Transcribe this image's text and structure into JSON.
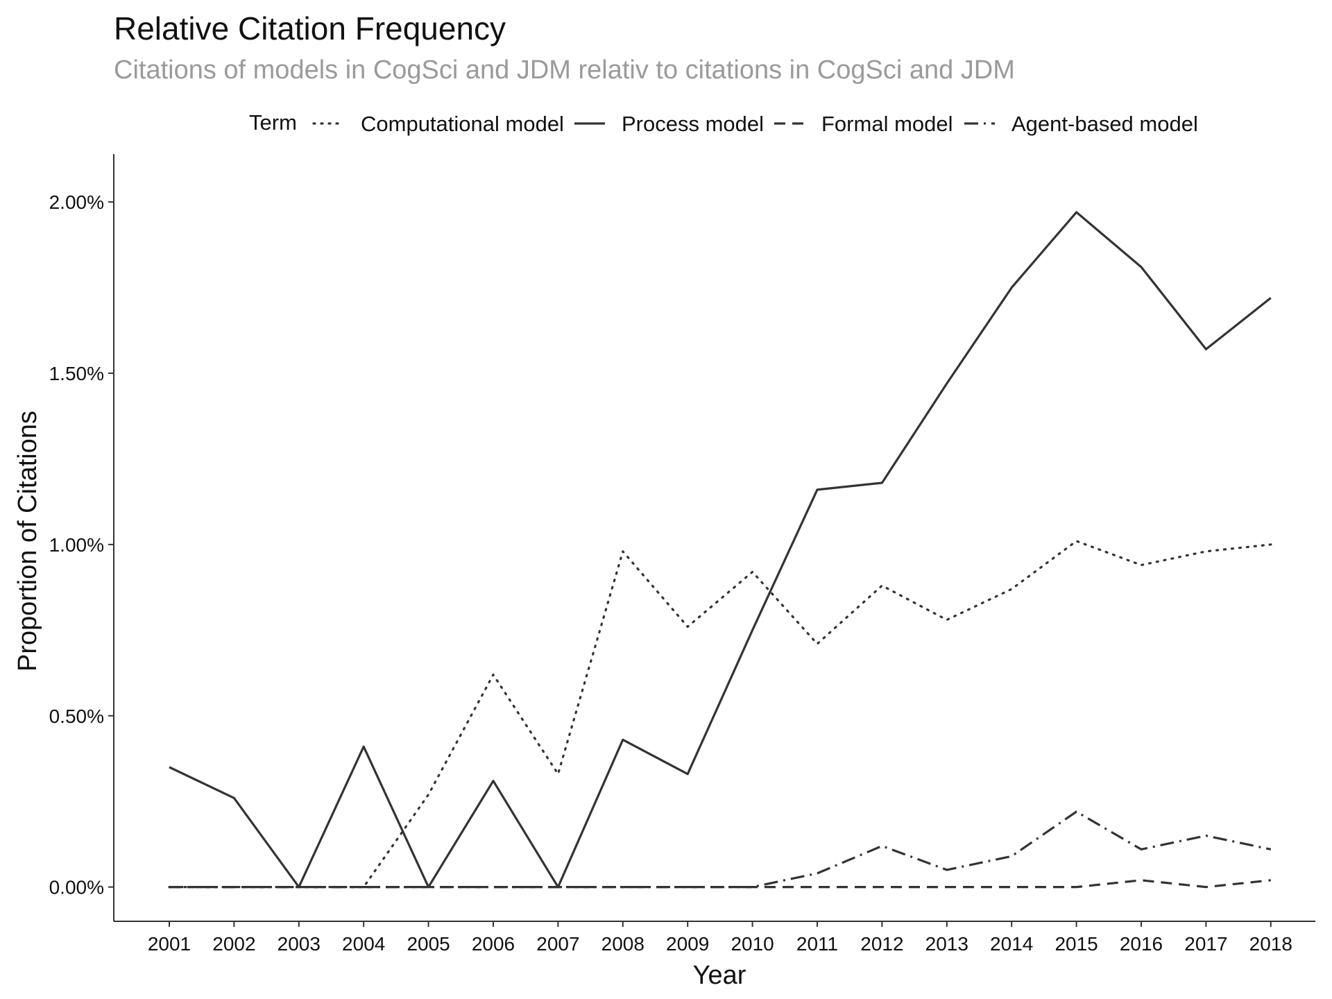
{
  "chart_data": {
    "type": "line",
    "title": "Relative Citation Frequency",
    "subtitle": "Citations of models in CogSci and JDM relativ to citations in CogSci and JDM",
    "xlabel": "Year",
    "ylabel": "Proportion of Citations",
    "legend_title": "Term",
    "legend_position": "top",
    "grid": false,
    "x": [
      "2001",
      "2002",
      "2003",
      "2004",
      "2005",
      "2006",
      "2007",
      "2008",
      "2009",
      "2010",
      "2011",
      "2012",
      "2013",
      "2014",
      "2015",
      "2016",
      "2017",
      "2018"
    ],
    "ylim": [
      -0.1,
      2.14
    ],
    "yticks": [
      0,
      0.5,
      1.0,
      1.5,
      2.0
    ],
    "ytick_labels": [
      "0.00%",
      "0.50%",
      "1.00%",
      "1.50%",
      "2.00%"
    ],
    "series": [
      {
        "name": "Computational model",
        "dash": "dotted",
        "values": [
          0,
          0,
          0,
          0,
          0.27,
          0.62,
          0.33,
          0.98,
          0.76,
          0.92,
          0.71,
          0.88,
          0.78,
          0.87,
          1.01,
          0.94,
          0.98,
          1.0
        ]
      },
      {
        "name": "Process model",
        "dash": "solid",
        "values": [
          0.35,
          0.26,
          0,
          0.41,
          0,
          0.31,
          0,
          0.43,
          0.33,
          0.75,
          1.16,
          1.18,
          1.47,
          1.75,
          1.97,
          1.81,
          1.57,
          1.72
        ]
      },
      {
        "name": "Formal model",
        "dash": "dashed",
        "values": [
          0,
          0,
          0,
          0,
          0,
          0,
          0,
          0,
          0,
          0,
          0,
          0,
          0,
          0,
          0,
          0.02,
          0,
          0.02
        ]
      },
      {
        "name": "Agent-based model",
        "dash": "dashdot",
        "values": [
          0,
          0,
          0,
          0,
          0,
          0,
          0,
          0,
          0,
          0,
          0.04,
          0.12,
          0.05,
          0.09,
          0.22,
          0.11,
          0.15,
          0.11
        ]
      }
    ],
    "line_color": "#333333"
  }
}
